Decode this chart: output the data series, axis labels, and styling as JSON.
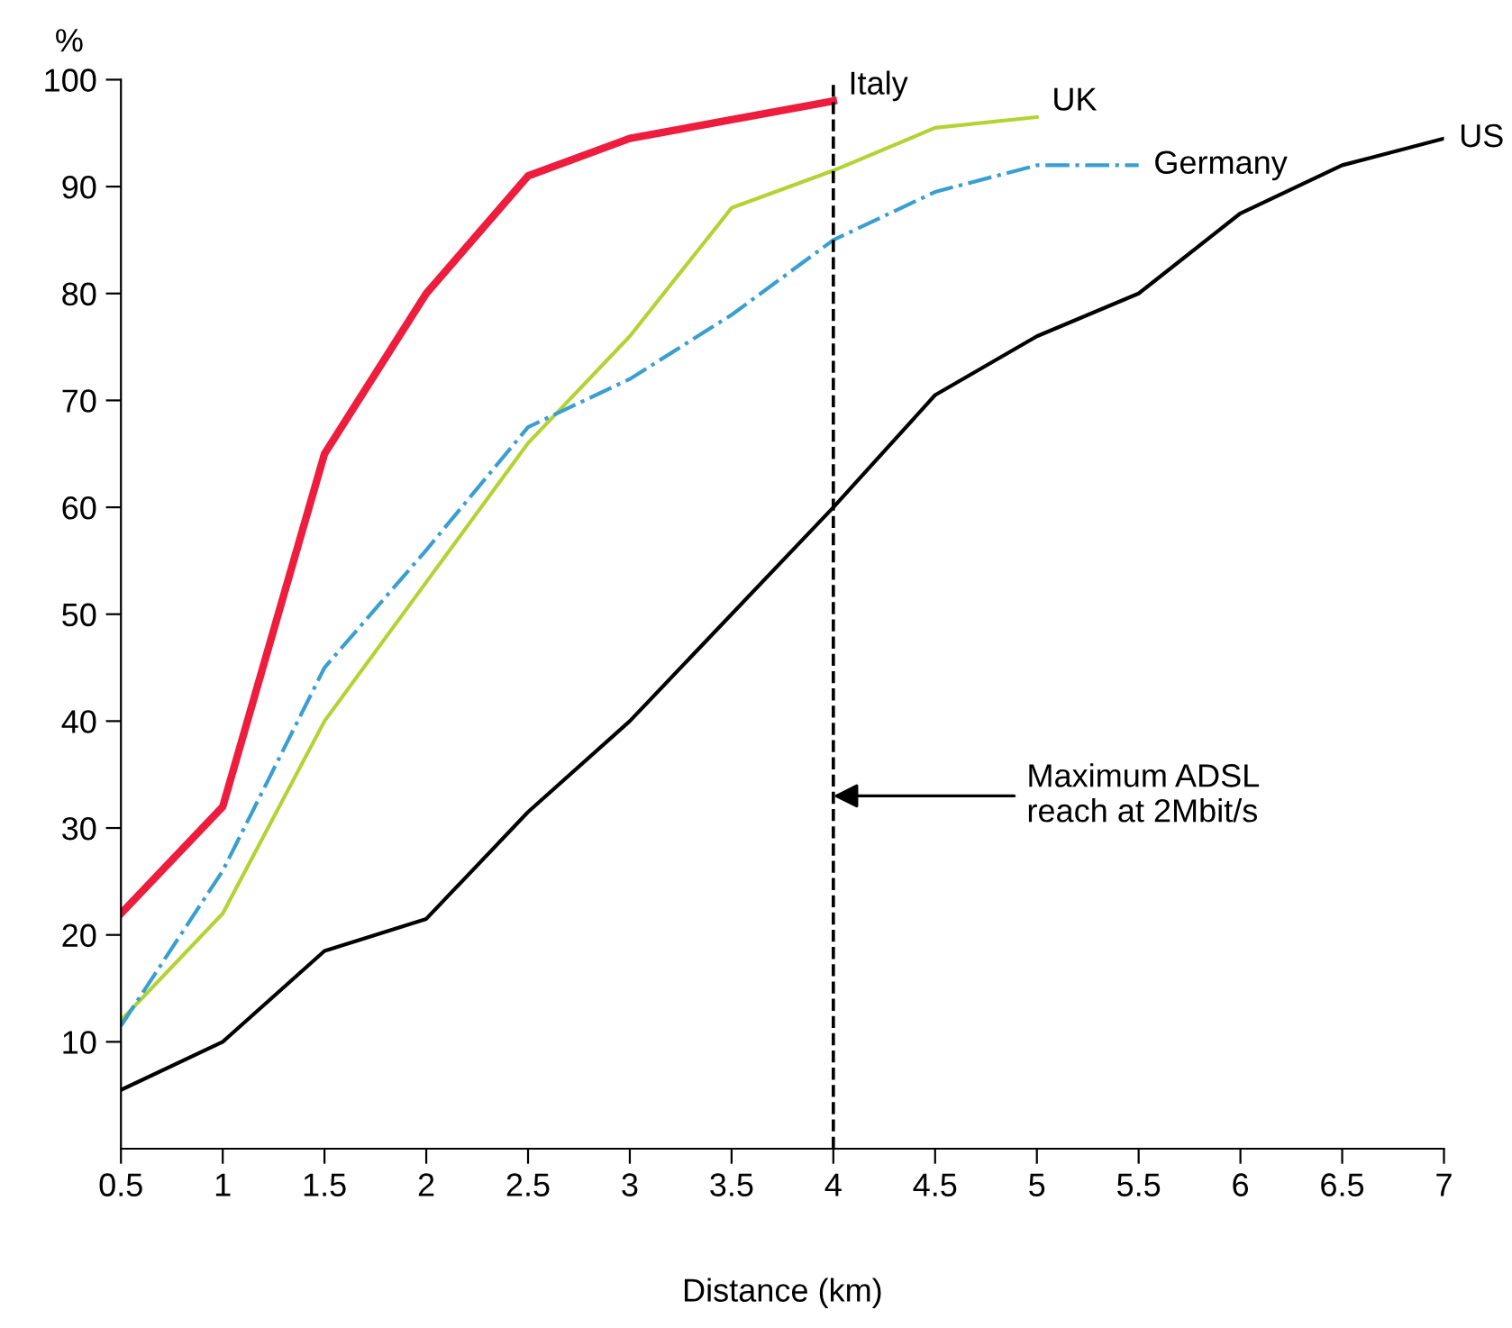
{
  "chart_data": {
    "type": "line",
    "ylabel": "%",
    "xlabel": "Distance (km)",
    "xlim": [
      0.5,
      7
    ],
    "xticks": [
      0.5,
      1,
      1.5,
      2,
      2.5,
      3,
      3.5,
      4,
      4.5,
      5,
      5.5,
      6,
      6.5,
      7
    ],
    "ylim": [
      0,
      100
    ],
    "yticks": [
      10,
      20,
      30,
      40,
      50,
      60,
      70,
      80,
      90,
      100
    ],
    "grid": false,
    "legend": false,
    "marker": "none",
    "series": [
      {
        "name": "Italy",
        "color": "#ee1d3d",
        "line_style": "solid",
        "x": [
          0.5,
          1,
          1.5,
          2,
          2.5,
          3,
          4
        ],
        "values": [
          22,
          32,
          65,
          80,
          91,
          94.5,
          98
        ]
      },
      {
        "name": "UK",
        "color": "#b3d334",
        "line_style": "solid",
        "x": [
          0.5,
          1,
          1.5,
          2,
          2.5,
          3,
          3.5,
          4,
          4.5,
          5
        ],
        "values": [
          12,
          22,
          40,
          53,
          66,
          76,
          88,
          91.5,
          95.5,
          96.5
        ]
      },
      {
        "name": "Germany",
        "color": "#3a9fd0",
        "line_style": "dashdot",
        "x": [
          0.5,
          1,
          1.5,
          2,
          2.5,
          3,
          3.5,
          4,
          4.5,
          5,
          5.5
        ],
        "values": [
          11.5,
          26,
          45,
          56,
          67.5,
          72,
          78,
          85,
          89.5,
          92,
          92
        ]
      },
      {
        "name": "US",
        "color": "#000000",
        "line_style": "solid",
        "x": [
          0.5,
          1,
          1.5,
          2,
          2.5,
          3,
          3.5,
          4,
          4.5,
          5,
          5.5,
          6,
          6.5,
          7
        ],
        "values": [
          5.5,
          10,
          18.5,
          21.5,
          31.5,
          40,
          50,
          60,
          70.5,
          76,
          80,
          87.5,
          92,
          94.5
        ]
      }
    ],
    "ref_lines": [
      {
        "axis": "x",
        "value": 4,
        "label": "Maximum ADSL\nreach at 2Mbit/s",
        "color": "#000000",
        "line_style": "dashed"
      }
    ]
  }
}
